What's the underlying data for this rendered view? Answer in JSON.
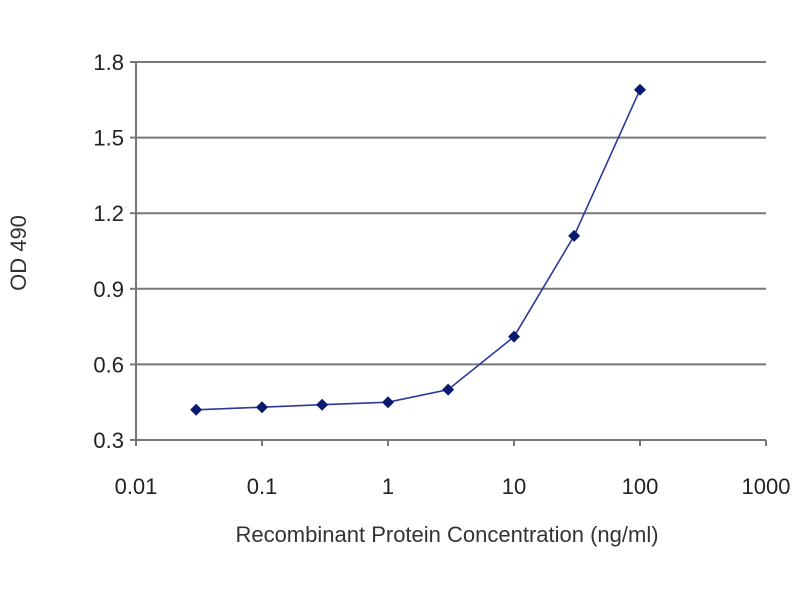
{
  "chart_data": {
    "type": "line",
    "title": "",
    "xlabel": "Recombinant Protein Concentration (ng/ml)",
    "ylabel": "OD 490",
    "x_scale": "log",
    "xlim": [
      0.01,
      1000
    ],
    "ylim": [
      0.3,
      1.8
    ],
    "x_ticks": [
      0.01,
      0.1,
      1,
      10,
      100,
      1000
    ],
    "x_tick_labels": [
      "0.01",
      "0.1",
      "1",
      "10",
      "100",
      "1000"
    ],
    "y_ticks": [
      0.3,
      0.6,
      0.9,
      1.2,
      1.5,
      1.8
    ],
    "y_tick_labels": [
      "0.3",
      "0.6",
      "0.9",
      "1.2",
      "1.5",
      "1.8"
    ],
    "grid": "horizontal",
    "legend": "none",
    "series": [
      {
        "x": [
          0.03,
          0.1,
          0.3,
          1,
          3,
          10,
          30,
          100
        ],
        "y": [
          0.42,
          0.43,
          0.44,
          0.45,
          0.5,
          0.71,
          1.11,
          1.69
        ]
      }
    ],
    "colors": {
      "line": "#2a3a9a",
      "marker": "#0a1a6e",
      "grid": "#777777",
      "axis": "#777777"
    }
  }
}
